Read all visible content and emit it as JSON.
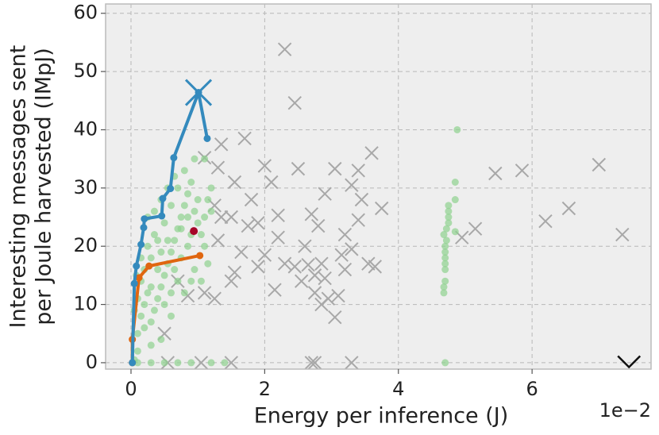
{
  "chart_data": {
    "type": "scatter",
    "x_label": "Energy per inference (J)",
    "x_offset_label": "1e−2",
    "y_label": [
      "Interesting messages sent",
      "per Joule harvested (IMpJ)"
    ],
    "xlim": [
      -0.38,
      7.78
    ],
    "ylim": [
      -1.1,
      61.6
    ],
    "xticks": [
      0,
      2,
      4,
      6
    ],
    "yticks": [
      0,
      10,
      20,
      30,
      40,
      50,
      60
    ],
    "grid": true,
    "background": "#eeeeee",
    "series": [
      {
        "mode": "scatter",
        "marker": "x",
        "size": 8,
        "color": "#a8a8a8",
        "x": [
          2.3,
          2.45,
          1.35,
          1.7,
          1.1,
          1.3,
          2.0,
          2.5,
          3.05,
          3.4,
          3.6,
          1.55,
          2.1,
          2.9,
          3.3,
          3.45,
          3.75,
          3.4,
          2.2,
          2.7,
          1.25,
          1.5,
          1.75,
          1.9,
          2.8,
          3.2,
          2.2,
          2.6,
          1.3,
          1.65,
          2.0,
          1.9,
          2.3,
          2.45,
          2.65,
          2.85,
          3.15,
          3.3,
          3.2,
          2.75,
          2.9,
          2.55,
          1.5,
          1.1,
          1.25,
          2.15,
          2.75,
          2.95,
          2.85,
          3.1,
          3.05,
          3.55,
          3.65,
          4.95,
          5.15,
          5.45,
          5.85,
          6.2,
          6.55,
          7.0,
          7.35,
          1.5,
          2.7,
          2.75,
          3.3,
          1.05,
          0.85,
          0.5,
          0.55,
          0.7,
          1.8,
          1.35,
          1.55
        ],
        "y": [
          53.8,
          44.6,
          37.5,
          38.5,
          35.2,
          33.5,
          33.8,
          33.3,
          33.3,
          33,
          36,
          31,
          31,
          29,
          30.5,
          28,
          26.5,
          24.5,
          25.3,
          25.5,
          27,
          25,
          23.5,
          24,
          23.5,
          22,
          21.5,
          20,
          21,
          19,
          18.5,
          16.5,
          17,
          16.5,
          16.8,
          17,
          18.5,
          19.5,
          16,
          15,
          14.5,
          14,
          14,
          12,
          11,
          12.5,
          12,
          11,
          10,
          11.5,
          7.8,
          17,
          16.5,
          21.5,
          23,
          32.5,
          33,
          24.3,
          26.5,
          34,
          22,
          0,
          0,
          0,
          0,
          0,
          11.5,
          5,
          0,
          14,
          28,
          25,
          15.5
        ]
      },
      {
        "mode": "scatter",
        "marker": "o",
        "size": 4.5,
        "color": "#8fd18f",
        "opacity": 0.7,
        "x": [
          0.1,
          0.1,
          0.15,
          0.2,
          0.25,
          0.3,
          0.35,
          0.4,
          0.45,
          0.5,
          0.55,
          0.6,
          0.65,
          0.7,
          0.75,
          0.8,
          0.85,
          0.9,
          0.95,
          1.0,
          1.05,
          1.1,
          1.15,
          1.2,
          1.1,
          0.95,
          0.8,
          0.7,
          0.6,
          0.5,
          0.4,
          0.3,
          0.2,
          0.15,
          0.25,
          0.35,
          0.45,
          0.55,
          0.65,
          0.75,
          0.85,
          0.95,
          1.05,
          1.15,
          0.3,
          0.4,
          0.5,
          0.6,
          0.7,
          0.8,
          0.9,
          1.0,
          1.1,
          0.2,
          0.3,
          0.45,
          0.6,
          0.1,
          0.05,
          0.08,
          1.2,
          0.9,
          0.35,
          0.55,
          0.65,
          0.75,
          0.85,
          0.25,
          0.15,
          0.45,
          0.1,
          0.3,
          0.5,
          0.7,
          0.9,
          1.2,
          1.4,
          0.05,
          4.68,
          4.68,
          4.7,
          4.7,
          4.7,
          4.7,
          4.7,
          4.7,
          4.72,
          4.72,
          4.75,
          4.75,
          4.75,
          4.85,
          4.85,
          4.85,
          4.88,
          4.7,
          4.68,
          4.75
        ],
        "y": [
          2,
          5,
          8,
          10,
          12,
          7,
          9,
          11,
          13,
          15,
          17,
          19,
          21,
          23,
          25,
          27,
          29,
          31,
          26,
          24,
          22,
          20,
          28,
          30,
          35,
          35,
          33,
          30,
          27,
          24,
          21,
          18,
          16,
          14,
          20,
          22,
          19,
          21,
          16,
          18,
          20,
          16,
          14,
          17,
          13,
          16,
          10,
          12,
          14,
          12,
          22,
          28,
          25,
          6,
          3,
          4,
          8,
          11,
          9,
          15,
          26,
          14,
          26,
          30,
          32,
          23,
          25,
          25,
          18,
          28,
          0,
          0,
          0,
          0,
          0,
          0,
          0,
          0.5,
          12,
          13,
          14,
          16,
          17,
          18,
          19,
          20,
          21,
          23,
          25,
          26,
          27,
          22.5,
          28,
          31,
          40,
          0,
          22,
          24
        ]
      },
      {
        "mode": "line",
        "marker": "o",
        "size": 4.5,
        "color": "#e06610",
        "x": [
          0.02,
          0.02,
          0.12,
          0.27,
          1.03
        ],
        "y": [
          0,
          4,
          14.6,
          16.6,
          18.4
        ]
      },
      {
        "mode": "line",
        "marker": "o",
        "size": 4.5,
        "color": "#348abd",
        "x": [
          0.02,
          0.05,
          0.08,
          0.15,
          0.19,
          0.2,
          0.46,
          0.475,
          0.59,
          0.64,
          1.01,
          1.14
        ],
        "y": [
          0,
          13.6,
          16.6,
          20.3,
          23.2,
          24.7,
          25.2,
          28.2,
          29.9,
          35.2,
          46.4,
          38.5
        ]
      },
      {
        "mode": "scatter",
        "marker": "x",
        "size": 16,
        "color": "#348abd",
        "x": [
          1.01
        ],
        "y": [
          46.4
        ]
      },
      {
        "mode": "scatter",
        "marker": "o",
        "size": 5,
        "color": "#a60628",
        "x": [
          0.94
        ],
        "y": [
          22.6
        ]
      },
      {
        "mode": "scatter",
        "marker": "v",
        "size": 14,
        "color": "#111111",
        "x": [
          7.45
        ],
        "y": [
          0
        ]
      }
    ]
  }
}
